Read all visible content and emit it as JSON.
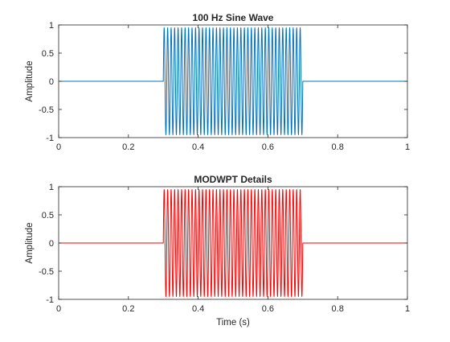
{
  "chart_data": [
    {
      "type": "line",
      "title": "100 Hz Sine Wave",
      "xlabel": "",
      "ylabel": "Amplitude",
      "xlim": [
        0,
        1
      ],
      "ylim": [
        -1,
        1
      ],
      "xticks": [
        0,
        0.2,
        0.4,
        0.6,
        0.8,
        1
      ],
      "xtick_labels": [
        "0",
        "0.2",
        "0.4",
        "0.6",
        "0.8",
        "1"
      ],
      "yticks": [
        1,
        0.5,
        0,
        -0.5,
        -1
      ],
      "ytick_labels": [
        "1",
        "0.5",
        "0",
        "-0.5",
        "-1"
      ],
      "grid": false,
      "series": [
        {
          "color": "#0072BD",
          "frequency_hz": 100,
          "amplitude": 0.95,
          "active_interval": [
            0.3,
            0.7
          ],
          "x_range": [
            0,
            1
          ]
        }
      ]
    },
    {
      "type": "line",
      "title": "MODWPT Details",
      "xlabel": "Time (s)",
      "ylabel": "Amplitude",
      "xlim": [
        0,
        1
      ],
      "ylim": [
        -1,
        1
      ],
      "xticks": [
        0,
        0.2,
        0.4,
        0.6,
        0.8,
        1
      ],
      "xtick_labels": [
        "0",
        "0.2",
        "0.4",
        "0.6",
        "0.8",
        "1"
      ],
      "yticks": [
        1,
        0.5,
        0,
        -0.5,
        -1
      ],
      "ytick_labels": [
        "1",
        "0.5",
        "0",
        "-0.5",
        "-1"
      ],
      "grid": false,
      "series": [
        {
          "color": "#FF0000",
          "frequency_hz": 100,
          "amplitude": 0.95,
          "active_interval": [
            0.3,
            0.7
          ],
          "x_range": [
            0,
            1
          ]
        }
      ]
    }
  ]
}
